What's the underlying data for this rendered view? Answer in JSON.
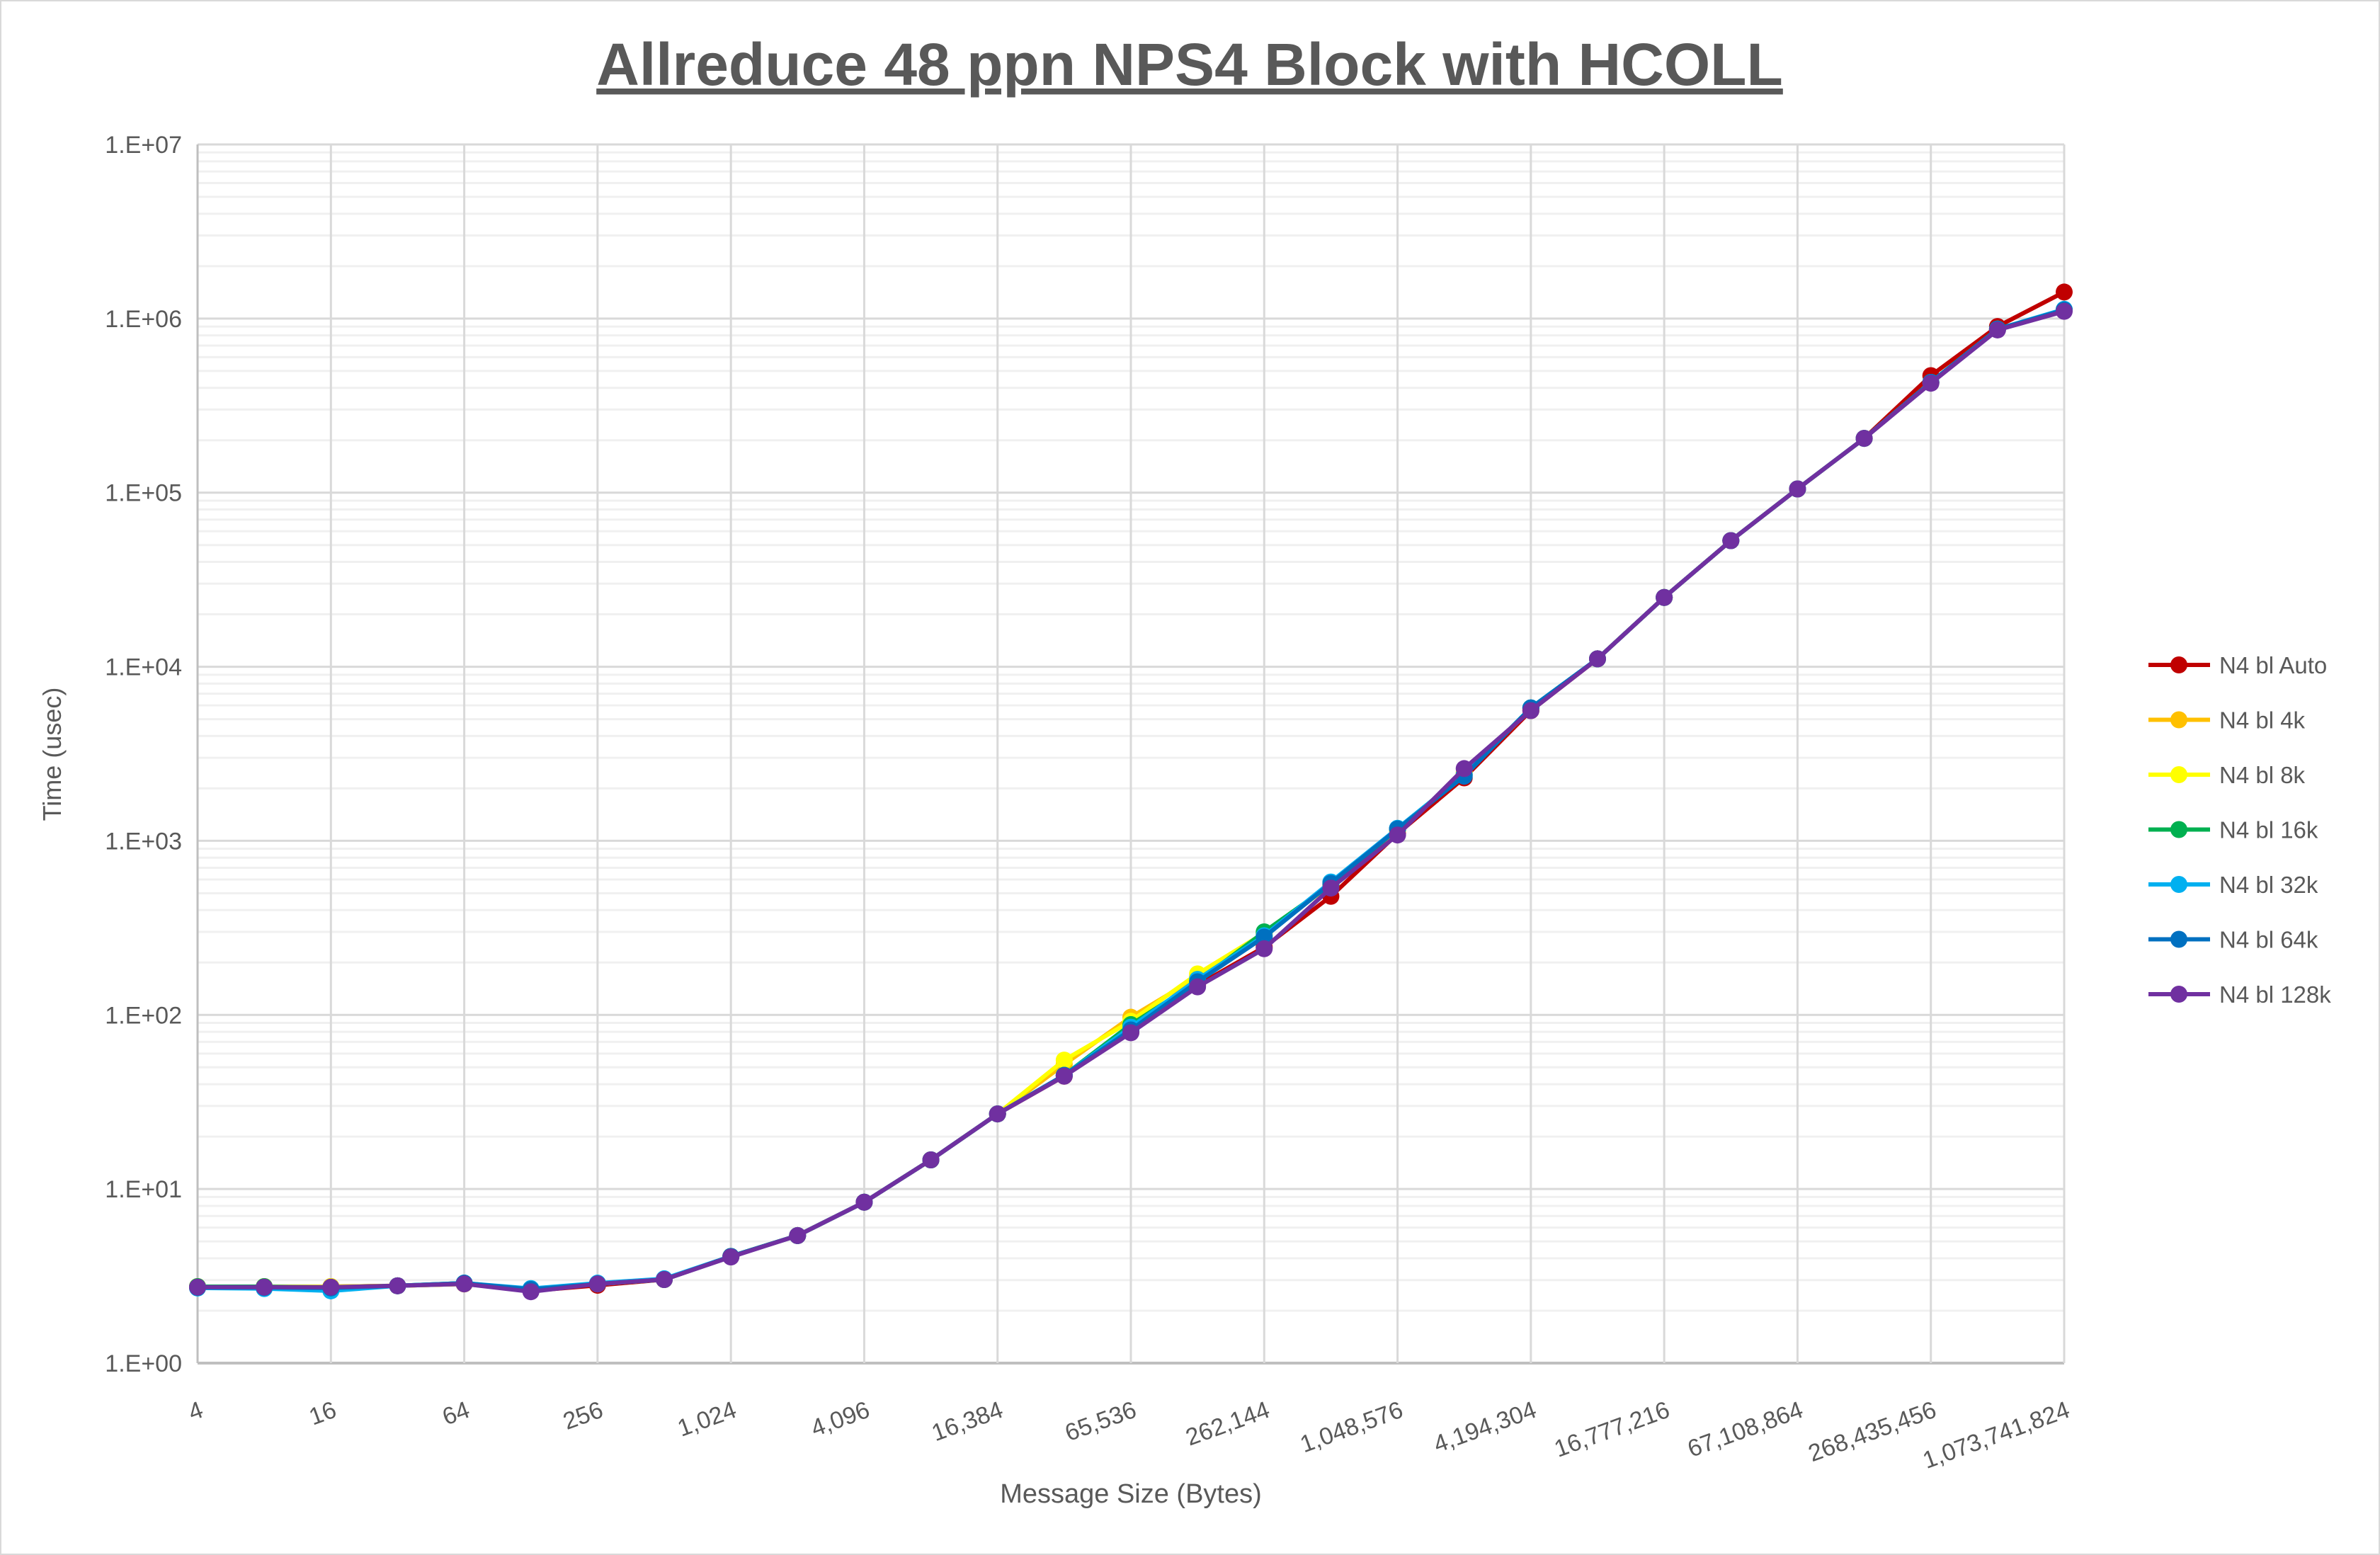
{
  "chart_data": {
    "type": "line",
    "title": "Allreduce 48 ppn NPS4 Block with HCOLL",
    "xlabel": "Message Size (Bytes)",
    "ylabel": "Time (usec)",
    "x_scale": "log2",
    "y_scale": "log10",
    "ylim": [
      1,
      10000000
    ],
    "grid": true,
    "legend_position": "right",
    "x": [
      4,
      8,
      16,
      32,
      64,
      128,
      256,
      512,
      1024,
      2048,
      4096,
      8192,
      16384,
      32768,
      65536,
      131072,
      262144,
      524288,
      1048576,
      2097152,
      4194304,
      8388608,
      16777216,
      33554432,
      67108864,
      134217728,
      268435456,
      536870912,
      1073741824
    ],
    "x_tick_labels": [
      "4",
      "16",
      "64",
      "256",
      "1,024",
      "4,096",
      "16,384",
      "65,536",
      "262,144",
      "1,048,576",
      "4,194,304",
      "16,777,216",
      "67,108,864",
      "268,435,456",
      "1,073,741,824"
    ],
    "y_tick_labels": [
      "1.E+00",
      "1.E+01",
      "1.E+02",
      "1.E+03",
      "1.E+04",
      "1.E+05",
      "1.E+06",
      "1.E+07"
    ],
    "series": [
      {
        "name": "N4 bl Auto",
        "color": "#c00000",
        "values": [
          2.75,
          2.75,
          2.75,
          2.78,
          2.85,
          2.6,
          2.8,
          3.02,
          4.1,
          5.4,
          8.4,
          14.7,
          27,
          44.5,
          80,
          148,
          245,
          480,
          1100,
          2300,
          5600,
          11100,
          25000,
          53000,
          105000,
          205000,
          470000,
          900000,
          1420000
        ]
      },
      {
        "name": "N4 bl 4k",
        "color": "#ffc000",
        "values": [
          2.75,
          2.75,
          2.75,
          2.78,
          2.85,
          2.62,
          2.85,
          3.02,
          4.1,
          5.4,
          8.4,
          14.7,
          27,
          52,
          97,
          165,
          290,
          560,
          1150,
          2450,
          5700,
          11100,
          25000,
          53000,
          105000,
          205000,
          430000,
          870000,
          1120000
        ]
      },
      {
        "name": "N4 bl 8k",
        "color": "#ffff00",
        "values": [
          2.75,
          2.75,
          2.75,
          2.78,
          2.85,
          2.62,
          2.85,
          3.02,
          4.1,
          5.4,
          8.4,
          14.7,
          27,
          55,
          92,
          172,
          295,
          560,
          1150,
          2450,
          5700,
          11100,
          25000,
          53000,
          105000,
          205000,
          430000,
          870000,
          1120000
        ]
      },
      {
        "name": "N4 bl 16k",
        "color": "#00b050",
        "values": [
          2.75,
          2.75,
          2.72,
          2.78,
          2.88,
          2.65,
          2.85,
          3.02,
          4.1,
          5.4,
          8.4,
          14.7,
          27,
          45,
          88,
          155,
          300,
          560,
          1170,
          2400,
          5800,
          11100,
          25000,
          53000,
          105000,
          205000,
          430000,
          870000,
          1120000
        ]
      },
      {
        "name": "N4 bl 32k",
        "color": "#00b0f0",
        "values": [
          2.7,
          2.68,
          2.6,
          2.78,
          2.88,
          2.68,
          2.88,
          3.05,
          4.1,
          5.4,
          8.4,
          14.7,
          27,
          45,
          85,
          160,
          285,
          580,
          1180,
          2400,
          5800,
          11100,
          25000,
          53000,
          105000,
          205000,
          430000,
          870000,
          1130000
        ]
      },
      {
        "name": "N4 bl 64k",
        "color": "#0070c0",
        "values": [
          2.72,
          2.72,
          2.7,
          2.78,
          2.88,
          2.65,
          2.85,
          3.02,
          4.1,
          5.4,
          8.4,
          14.7,
          27,
          45,
          82,
          155,
          280,
          570,
          1170,
          2350,
          5800,
          11100,
          25000,
          53000,
          105000,
          205000,
          430000,
          870000,
          1120000
        ]
      },
      {
        "name": "N4 bl 128k",
        "color": "#7030a0",
        "values": [
          2.73,
          2.73,
          2.73,
          2.78,
          2.85,
          2.57,
          2.85,
          3.02,
          4.07,
          5.4,
          8.4,
          14.7,
          27,
          44.5,
          79,
          145,
          240,
          535,
          1080,
          2600,
          5600,
          11100,
          25000,
          53000,
          105000,
          205000,
          425000,
          860000,
          1100000
        ]
      }
    ]
  }
}
